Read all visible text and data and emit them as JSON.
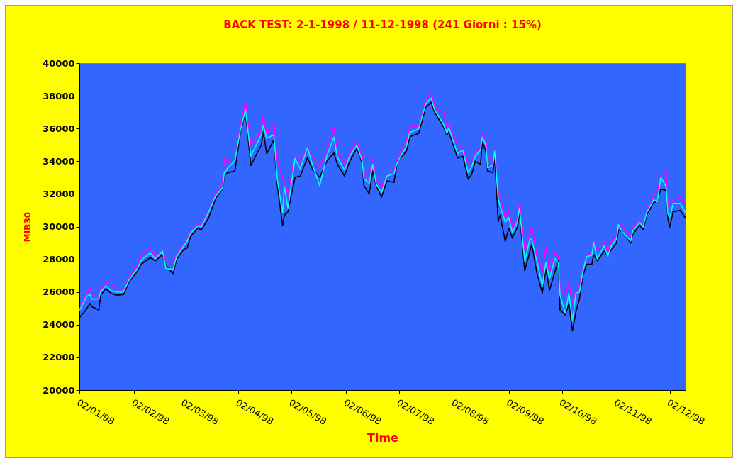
{
  "chart_data": {
    "type": "line",
    "title": "BACK TEST:    2-1-1998 / 11-12-1998 (241 Giorni : 15%)",
    "xlabel": "Time",
    "ylabel": "MIB30",
    "x": [
      "1998-01-02",
      "1998-01-06",
      "1998-01-08",
      "1998-01-09",
      "1998-01-13",
      "1998-01-14",
      "1998-01-17",
      "1998-01-20",
      "1998-01-23",
      "1998-01-27",
      "1998-01-30",
      "1998-02-04",
      "1998-02-06",
      "1998-02-11",
      "1998-02-14",
      "1998-02-18",
      "1998-02-20",
      "1998-02-24",
      "1998-02-26",
      "1998-03-02",
      "1998-03-04",
      "1998-03-06",
      "1998-03-10",
      "1998-03-12",
      "1998-03-16",
      "1998-03-20",
      "1998-03-24",
      "1998-03-25",
      "1998-03-27",
      "1998-03-31",
      "1998-04-03",
      "1998-04-06",
      "1998-04-09",
      "1998-04-15",
      "1998-04-16",
      "1998-04-18",
      "1998-04-22",
      "1998-04-24",
      "1998-04-27",
      "1998-04-28",
      "1998-04-30",
      "1998-05-04",
      "1998-05-07",
      "1998-05-11",
      "1998-05-14",
      "1998-05-18",
      "1998-05-22",
      "1998-05-26",
      "1998-05-28",
      "1998-06-01",
      "1998-06-04",
      "1998-06-08",
      "1998-06-11",
      "1998-06-12",
      "1998-06-15",
      "1998-06-17",
      "1998-06-19",
      "1998-06-22",
      "1998-06-25",
      "1998-06-29",
      "1998-07-01",
      "1998-07-06",
      "1998-07-08",
      "1998-07-13",
      "1998-07-17",
      "1998-07-20",
      "1998-07-22",
      "1998-07-27",
      "1998-07-29",
      "1998-07-30",
      "1998-08-04",
      "1998-08-07",
      "1998-08-10",
      "1998-08-12",
      "1998-08-14",
      "1998-08-17",
      "1998-08-18",
      "1998-08-20",
      "1998-08-21",
      "1998-08-24",
      "1998-08-25",
      "1998-08-27",
      "1998-08-28",
      "1998-08-31",
      "1998-09-02",
      "1998-09-04",
      "1998-09-07",
      "1998-09-08",
      "1998-09-11",
      "1998-09-14",
      "1998-09-15",
      "1998-09-18",
      "1998-09-21",
      "1998-09-23",
      "1998-09-25",
      "1998-09-28",
      "1998-09-30",
      "1998-10-01",
      "1998-10-04",
      "1998-10-06",
      "1998-10-08",
      "1998-10-10",
      "1998-10-12",
      "1998-10-14",
      "1998-10-16",
      "1998-10-19",
      "1998-10-20",
      "1998-10-22",
      "1998-10-26",
      "1998-10-28",
      "1998-10-30",
      "1998-11-02",
      "1998-11-03",
      "1998-11-05",
      "1998-11-10",
      "1998-11-11",
      "1998-11-15",
      "1998-11-17",
      "1998-11-19",
      "1998-11-23",
      "1998-11-25",
      "1998-11-27",
      "1998-11-30",
      "1998-12-01",
      "1998-12-02",
      "1998-12-04",
      "1998-12-08",
      "1998-12-11"
    ],
    "series": [
      {
        "color": "#ff00ff",
        "values": [
          24900,
          25900,
          26300,
          25900,
          25700,
          26200,
          26600,
          26500,
          26200,
          26100,
          26900,
          27700,
          28200,
          28700,
          28100,
          28600,
          27900,
          27800,
          28300,
          28900,
          29200,
          29700,
          30150,
          30100,
          30900,
          32000,
          32600,
          34200,
          33900,
          34000,
          36200,
          37640,
          35000,
          35900,
          36780,
          35700,
          36340,
          34000,
          33000,
          32700,
          32000,
          34300,
          34000,
          34800,
          34300,
          33600,
          34700,
          36050,
          34600,
          33800,
          34500,
          35200,
          34300,
          33300,
          32900,
          34240,
          32800,
          32400,
          33100,
          33400,
          34200,
          35200,
          36100,
          36100,
          37700,
          38220,
          37300,
          37000,
          36000,
          36300,
          35000,
          34800,
          33900,
          34000,
          34500,
          34800,
          35730,
          35300,
          34400,
          33900,
          34700,
          32000,
          31900,
          30500,
          31000,
          29900,
          30600,
          31540,
          28500,
          29700,
          30010,
          28200,
          27300,
          28750,
          27200,
          28390,
          28200,
          26100,
          25800,
          26580,
          25300,
          26000,
          26400,
          27400,
          28200,
          28400,
          29100,
          28600,
          29100,
          28400,
          29100,
          29400,
          30200,
          30100,
          29400,
          29800,
          30300,
          30150,
          30900,
          31900,
          32200,
          33100,
          33480,
          31300,
          31500,
          31600,
          31800,
          31400
        ]
      },
      {
        "color": "#000000",
        "values": [
          24430,
          24950,
          25300,
          25100,
          24900,
          25800,
          26200,
          25900,
          25800,
          25850,
          26600,
          27300,
          27700,
          28100,
          27900,
          28300,
          27600,
          27100,
          28000,
          28600,
          28700,
          29400,
          29900,
          29800,
          30500,
          31700,
          32300,
          33100,
          33300,
          33400,
          35700,
          37000,
          33740,
          35000,
          35800,
          34460,
          35300,
          32500,
          30050,
          30700,
          30900,
          33000,
          33100,
          34200,
          33500,
          33000,
          34000,
          34500,
          33800,
          33100,
          34000,
          34800,
          33900,
          32500,
          32000,
          33400,
          32500,
          31800,
          32800,
          32700,
          34000,
          34600,
          35500,
          35700,
          37300,
          37600,
          37000,
          36100,
          35600,
          35800,
          34200,
          34300,
          32900,
          33200,
          34000,
          33800,
          35200,
          34600,
          33400,
          33300,
          34250,
          30300,
          30700,
          29100,
          29900,
          29300,
          30000,
          30900,
          27300,
          28500,
          28900,
          27100,
          25930,
          27400,
          26100,
          27200,
          27900,
          24900,
          24600,
          25300,
          23620,
          24800,
          25600,
          27000,
          27700,
          27700,
          28300,
          27900,
          28500,
          28200,
          28600,
          29000,
          29800,
          29700,
          29000,
          29500,
          30100,
          29800,
          30700,
          31500,
          31500,
          32300,
          32200,
          30500,
          29980,
          30900,
          31000,
          30500
        ]
      },
      {
        "color": "#00ffff",
        "values": [
          24850,
          25710,
          25860,
          25570,
          25570,
          26000,
          26390,
          26080,
          26000,
          26000,
          26720,
          27450,
          27950,
          28390,
          28030,
          28500,
          27450,
          27370,
          28170,
          28820,
          29110,
          29620,
          30050,
          29980,
          30850,
          31860,
          32360,
          33300,
          33590,
          34030,
          35830,
          37140,
          34320,
          35620,
          36200,
          35400,
          35620,
          32870,
          30850,
          32440,
          31140,
          34170,
          33520,
          34820,
          33740,
          32510,
          34320,
          35470,
          34240,
          33450,
          34320,
          34970,
          34030,
          32940,
          32650,
          33810,
          32580,
          32080,
          33090,
          33230,
          33960,
          34900,
          35760,
          35980,
          37500,
          37860,
          37140,
          36270,
          35690,
          36050,
          34460,
          34680,
          33300,
          33670,
          34320,
          34680,
          35470,
          34970,
          33590,
          33740,
          34610,
          31710,
          31280,
          30270,
          30560,
          29620,
          30340,
          31140,
          27880,
          29260,
          29200,
          27810,
          26360,
          27810,
          26800,
          28030,
          27810,
          25780,
          24700,
          25930,
          24270,
          25930,
          26000,
          27300,
          28170,
          28240,
          29040,
          28030,
          28820,
          28170,
          28820,
          29260,
          30130,
          29690,
          29110,
          29690,
          30270,
          29980,
          30850,
          31640,
          31500,
          33020,
          32440,
          30780,
          30560,
          31420,
          31420,
          30850
        ]
      }
    ],
    "xlim": [
      "1998-01-02",
      "1998-12-11"
    ],
    "xticks": [
      {
        "value": "1998-01-02",
        "label": "02/01/98"
      },
      {
        "value": "1998-02-02",
        "label": "02/02/98"
      },
      {
        "value": "1998-03-02",
        "label": "02/03/98"
      },
      {
        "value": "1998-04-02",
        "label": "02/04/98"
      },
      {
        "value": "1998-05-02",
        "label": "02/05/98"
      },
      {
        "value": "1998-06-02",
        "label": "02/06/98"
      },
      {
        "value": "1998-07-02",
        "label": "02/07/98"
      },
      {
        "value": "1998-08-02",
        "label": "02/08/98"
      },
      {
        "value": "1998-09-02",
        "label": "02/09/98"
      },
      {
        "value": "1998-10-02",
        "label": "02/10/98"
      },
      {
        "value": "1998-11-02",
        "label": "02/11/98"
      },
      {
        "value": "1998-12-02",
        "label": "02/12/98"
      }
    ],
    "ylim": [
      20000,
      40000
    ],
    "yticks": [
      20000,
      22000,
      24000,
      26000,
      28000,
      30000,
      32000,
      34000,
      36000,
      38000,
      40000
    ]
  }
}
